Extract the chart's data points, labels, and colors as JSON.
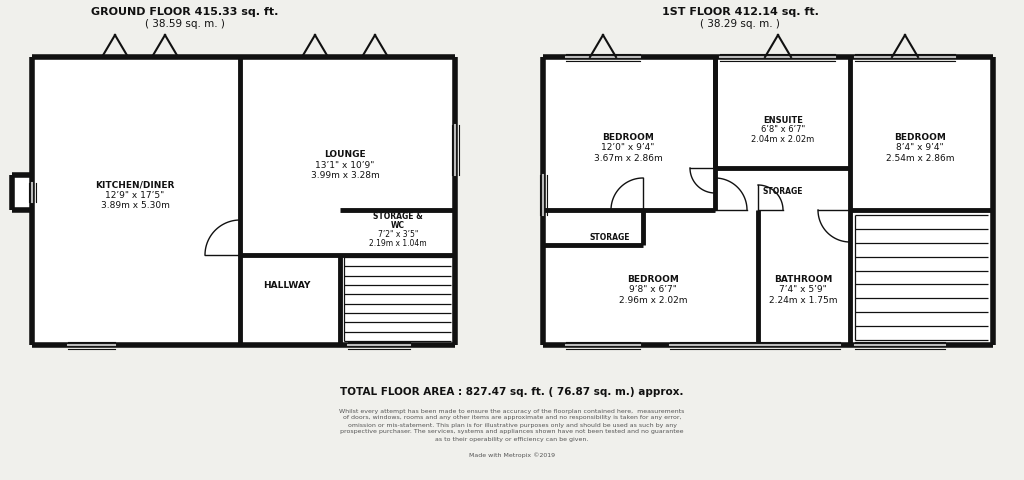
{
  "bg_color": "#f0f0ec",
  "wall_color": "#111111",
  "ground_floor_title": "GROUND FLOOR 415.33 sq. ft.",
  "ground_floor_subtitle": "( 38.59 sq. m. )",
  "first_floor_title": "1ST FLOOR 412.14 sq. ft.",
  "first_floor_subtitle": "( 38.29 sq. m. )",
  "total_area": "TOTAL FLOOR AREA : 827.47 sq. ft. ( 76.87 sq. m.) approx.",
  "disclaimer_line1": "Whilst every attempt has been made to ensure the accuracy of the floorplan contained here,  measurements",
  "disclaimer_line2": "of doors, windows, rooms and any other items are approximate and no responsibility is taken for any error,",
  "disclaimer_line3": "omission or mis-statement. This plan is for illustrative purposes only and should be used as such by any",
  "disclaimer_line4": "prospective purchaser. The services, systems and appliances shown have not been tested and no guarantee",
  "disclaimer_line5": "as to their operability or efficiency can be given.",
  "disclaimer_line6": "Made with Metropix ©2019"
}
